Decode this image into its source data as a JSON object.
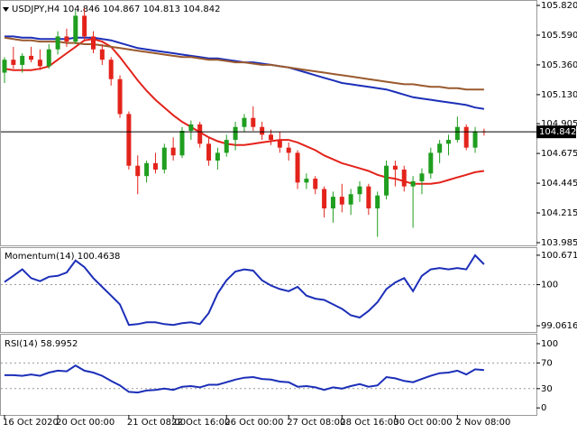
{
  "header": {
    "symbol": "USDJPY,H4",
    "ohlc": [
      104.846,
      104.867,
      104.813,
      104.842
    ]
  },
  "chart_data": [
    {
      "type": "candlestick",
      "ylim": [
        103.964,
        105.855
      ],
      "yticks": [
        {
          "value": 105.82,
          "label": "105.820"
        },
        {
          "value": 105.59,
          "label": "105.590"
        },
        {
          "value": 105.36,
          "label": "105.360"
        },
        {
          "value": 105.13,
          "label": "105.130"
        },
        104.905,
        104.675,
        104.445,
        104.215,
        103.985
      ],
      "last_price": 104.842,
      "up_color": "#1f9e1f",
      "down_color": "#e3231b",
      "open": [
        105.3,
        105.4,
        105.36,
        105.43,
        105.4,
        105.35,
        105.48,
        105.58,
        105.54,
        105.74,
        105.58,
        105.48,
        105.4,
        105.25,
        104.98,
        104.58,
        104.5,
        104.6,
        104.55,
        104.72,
        104.66,
        104.85,
        104.9,
        104.75,
        104.62,
        104.68,
        104.78,
        104.88,
        104.95,
        104.88,
        104.82,
        104.78,
        104.72,
        104.68,
        104.45,
        104.48,
        104.4,
        104.25,
        104.34,
        104.28,
        104.36,
        104.42,
        104.25,
        104.35,
        104.58,
        104.55,
        104.42,
        104.46,
        104.52,
        104.68,
        104.75,
        104.78,
        104.88,
        104.72,
        104.846
      ],
      "high": [
        105.42,
        105.5,
        105.45,
        105.5,
        105.48,
        105.52,
        105.62,
        105.64,
        105.78,
        105.8,
        105.62,
        105.52,
        105.42,
        105.28,
        105.0,
        104.66,
        104.62,
        104.68,
        104.75,
        104.8,
        104.88,
        104.93,
        104.92,
        104.8,
        104.72,
        104.82,
        104.92,
        104.98,
        105.04,
        104.92,
        104.86,
        104.84,
        104.76,
        104.7,
        104.52,
        104.5,
        104.42,
        104.38,
        104.44,
        104.4,
        104.46,
        104.44,
        104.38,
        104.62,
        104.62,
        104.58,
        104.5,
        104.56,
        104.72,
        104.78,
        104.82,
        104.96,
        104.9,
        104.88,
        104.867
      ],
      "low": [
        105.22,
        105.33,
        105.3,
        105.38,
        105.32,
        105.33,
        105.44,
        105.5,
        105.52,
        105.55,
        105.45,
        105.36,
        105.2,
        104.95,
        104.55,
        104.36,
        104.45,
        104.52,
        104.52,
        104.62,
        104.64,
        104.78,
        104.72,
        104.58,
        104.55,
        104.65,
        104.7,
        104.84,
        104.85,
        104.78,
        104.74,
        104.68,
        104.62,
        104.4,
        104.4,
        104.36,
        104.18,
        104.14,
        104.22,
        104.2,
        104.3,
        104.2,
        104.03,
        104.32,
        104.42,
        104.38,
        104.1,
        104.36,
        104.48,
        104.6,
        104.66,
        104.76,
        104.7,
        104.68,
        104.813
      ],
      "close": [
        105.4,
        105.36,
        105.43,
        105.4,
        105.35,
        105.48,
        105.58,
        105.54,
        105.74,
        105.58,
        105.48,
        105.4,
        105.25,
        104.98,
        104.58,
        104.5,
        104.6,
        104.55,
        104.72,
        104.66,
        104.85,
        104.9,
        104.75,
        104.62,
        104.68,
        104.78,
        104.88,
        104.95,
        104.88,
        104.82,
        104.78,
        104.72,
        104.68,
        104.45,
        104.48,
        104.4,
        104.25,
        104.34,
        104.28,
        104.36,
        104.42,
        104.25,
        104.35,
        104.58,
        104.55,
        104.42,
        104.46,
        104.52,
        104.68,
        104.75,
        104.78,
        104.88,
        104.72,
        104.846,
        104.842
      ],
      "lines": [
        {
          "color": "#e3231b",
          "values": [
            105.33,
            105.32,
            105.32,
            105.32,
            105.33,
            105.35,
            105.4,
            105.45,
            105.5,
            105.55,
            105.56,
            105.54,
            105.5,
            105.42,
            105.33,
            105.24,
            105.16,
            105.09,
            105.03,
            104.97,
            104.92,
            104.88,
            104.84,
            104.8,
            104.77,
            104.75,
            104.74,
            104.74,
            104.75,
            104.76,
            104.77,
            104.78,
            104.78,
            104.76,
            104.73,
            104.7,
            104.66,
            104.63,
            104.6,
            104.58,
            104.56,
            104.54,
            104.51,
            104.49,
            104.48,
            104.46,
            104.44,
            104.44,
            104.44,
            104.45,
            104.47,
            104.49,
            104.51,
            104.53,
            104.54
          ]
        },
        {
          "color": "#1c2fb8",
          "values": [
            105.58,
            105.58,
            105.57,
            105.57,
            105.56,
            105.56,
            105.56,
            105.56,
            105.57,
            105.57,
            105.57,
            105.56,
            105.55,
            105.53,
            105.51,
            105.49,
            105.48,
            105.47,
            105.46,
            105.45,
            105.44,
            105.43,
            105.42,
            105.41,
            105.41,
            105.4,
            105.39,
            105.38,
            105.38,
            105.37,
            105.36,
            105.35,
            105.34,
            105.32,
            105.3,
            105.28,
            105.26,
            105.24,
            105.22,
            105.21,
            105.2,
            105.19,
            105.18,
            105.17,
            105.15,
            105.13,
            105.11,
            105.1,
            105.09,
            105.08,
            105.07,
            105.06,
            105.05,
            105.03,
            105.02
          ]
        },
        {
          "color": "#9a5a2e",
          "values": [
            105.57,
            105.56,
            105.55,
            105.55,
            105.54,
            105.54,
            105.54,
            105.53,
            105.53,
            105.52,
            105.52,
            105.51,
            105.5,
            105.49,
            105.48,
            105.47,
            105.46,
            105.45,
            105.44,
            105.43,
            105.42,
            105.42,
            105.41,
            105.4,
            105.4,
            105.39,
            105.38,
            105.38,
            105.37,
            105.36,
            105.36,
            105.35,
            105.34,
            105.33,
            105.32,
            105.31,
            105.3,
            105.29,
            105.28,
            105.27,
            105.26,
            105.25,
            105.24,
            105.23,
            105.22,
            105.21,
            105.21,
            105.2,
            105.19,
            105.19,
            105.18,
            105.18,
            105.17,
            105.17,
            105.17
          ]
        }
      ]
    },
    {
      "type": "line",
      "title": "Momentum(14)",
      "current": 100.4638,
      "color": "#1c2fb8",
      "ylim": [
        98.92,
        100.835
      ],
      "yticks": [
        100.6719,
        100,
        99.0616
      ],
      "reference_lines": [
        100
      ],
      "values": [
        100.06,
        100.2,
        100.35,
        100.15,
        100.08,
        100.18,
        100.2,
        100.28,
        100.55,
        100.4,
        100.15,
        99.95,
        99.75,
        99.55,
        99.08,
        99.1,
        99.14,
        99.14,
        99.1,
        99.08,
        99.12,
        99.14,
        99.1,
        99.35,
        99.8,
        100.1,
        100.3,
        100.35,
        100.32,
        100.1,
        99.98,
        99.9,
        99.85,
        99.95,
        99.75,
        99.68,
        99.65,
        99.55,
        99.45,
        99.3,
        99.25,
        99.4,
        99.6,
        99.9,
        100.05,
        100.15,
        99.85,
        100.2,
        100.35,
        100.38,
        100.35,
        100.38,
        100.35,
        100.67,
        100.4638
      ]
    },
    {
      "type": "line",
      "title": "RSI(14)",
      "current": 58.9952,
      "color": "#1c2fb8",
      "ylim": [
        -11,
        114
      ],
      "yticks": [
        100,
        70,
        30,
        0
      ],
      "reference_lines": [
        70,
        30
      ],
      "values": [
        51,
        51,
        50,
        52,
        50,
        55,
        58,
        57,
        66,
        58,
        55,
        50,
        42,
        35,
        25,
        24,
        27,
        28,
        30,
        28,
        33,
        34,
        32,
        36,
        36,
        40,
        44,
        47,
        48,
        45,
        44,
        41,
        40,
        33,
        34,
        32,
        28,
        32,
        30,
        34,
        37,
        33,
        35,
        48,
        46,
        42,
        40,
        45,
        50,
        54,
        55,
        58,
        52,
        60,
        58.9952
      ],
      "categories": [
        "16 Oct 2020",
        null,
        null,
        null,
        null,
        null,
        "20 Oct 00:00",
        null,
        null,
        null,
        null,
        null,
        null,
        null,
        "21 Oct 08:00",
        null,
        null,
        null,
        null,
        "22 Oct 16:00",
        null,
        null,
        null,
        null,
        null,
        "26 Oct 00:00",
        null,
        null,
        null,
        null,
        null,
        null,
        "27 Oct 08:00",
        null,
        null,
        null,
        null,
        null,
        "28 Oct 16:00",
        null,
        null,
        null,
        null,
        null,
        "30 Oct 00:00",
        null,
        null,
        null,
        null,
        null,
        null,
        "2 Nov 08:00",
        null,
        null,
        null
      ]
    }
  ]
}
